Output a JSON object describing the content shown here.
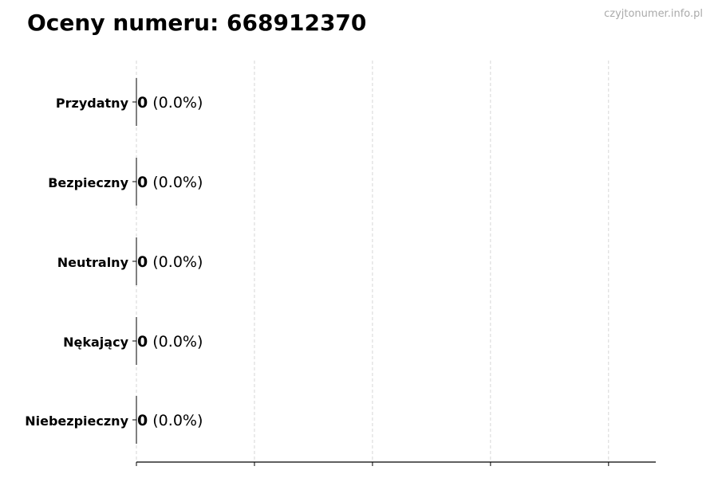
{
  "chart_data": {
    "type": "bar",
    "orientation": "horizontal",
    "title": "Oceny numeru: 668912370",
    "watermark": "czyjtonumer.info.pl",
    "categories": [
      "Przydatny",
      "Bezpieczny",
      "Neutralny",
      "Nękający",
      "Niebezpieczny"
    ],
    "values": [
      0,
      0,
      0,
      0,
      0
    ],
    "percent_labels": [
      "(0.0%)",
      "(0.0%)",
      "(0.0%)",
      "(0.0%)",
      "(0.0%)"
    ],
    "xlabel": "",
    "ylabel": "",
    "xlim": [
      0,
      4.4
    ],
    "xticks": [
      0,
      1,
      2,
      3,
      4
    ],
    "xtick_labels_visible": false,
    "grid": "x, dashed",
    "colors": {
      "bar_edge": "#000000",
      "grid": "#cccccc",
      "watermark": "#aaaaaa"
    }
  }
}
